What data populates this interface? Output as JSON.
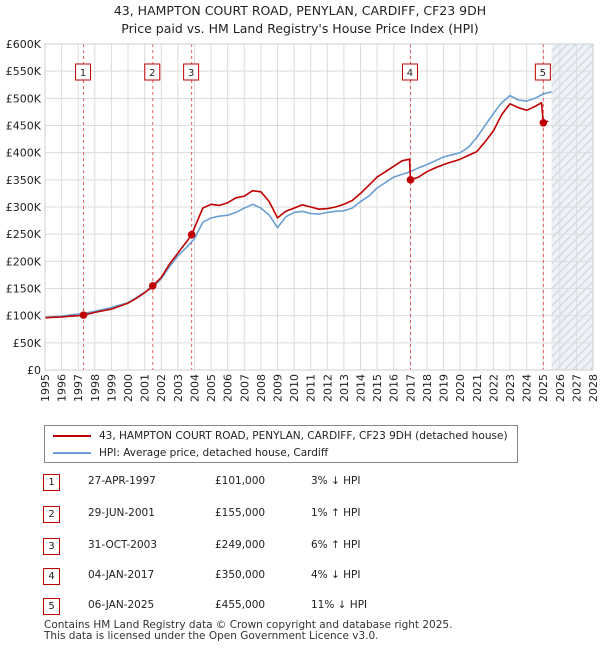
{
  "title_line1": "43, HAMPTON COURT ROAD, PENYLAN, CARDIFF, CF23 9DH",
  "title_line2": "Price paid vs. HM Land Registry's House Price Index (HPI)",
  "colors": {
    "price": "#c00000",
    "hpi": "#6a9fd4",
    "future_hatch": "#c8d2e0",
    "grid": "#dcdcdc",
    "vline": "#e06060"
  },
  "chart_data": {
    "type": "line",
    "title": "43, HAMPTON COURT ROAD, PENYLAN, CARDIFF, CF23 9DH — Price paid vs. HM Land Registry's House Price Index (HPI)",
    "xlim": [
      1995,
      2028
    ],
    "ylim": [
      0,
      600000
    ],
    "x_ticks": [
      "1995",
      "1996",
      "1997",
      "1998",
      "1999",
      "2000",
      "2001",
      "2002",
      "2003",
      "2004",
      "2005",
      "2006",
      "2007",
      "2008",
      "2009",
      "2010",
      "2011",
      "2012",
      "2013",
      "2014",
      "2015",
      "2016",
      "2017",
      "2018",
      "2019",
      "2020",
      "2021",
      "2022",
      "2023",
      "2024",
      "2025",
      "2026",
      "2027",
      "2028"
    ],
    "y_ticks": [
      {
        "value": 0,
        "label": "£0"
      },
      {
        "value": 50000,
        "label": "£50K"
      },
      {
        "value": 100000,
        "label": "£100K"
      },
      {
        "value": 150000,
        "label": "£150K"
      },
      {
        "value": 200000,
        "label": "£200K"
      },
      {
        "value": 250000,
        "label": "£250K"
      },
      {
        "value": 300000,
        "label": "£300K"
      },
      {
        "value": 350000,
        "label": "£350K"
      },
      {
        "value": 400000,
        "label": "£400K"
      },
      {
        "value": 450000,
        "label": "£450K"
      },
      {
        "value": 500000,
        "label": "£500K"
      },
      {
        "value": 550000,
        "label": "£550K"
      },
      {
        "value": 600000,
        "label": "£600K"
      }
    ],
    "future_from": 2025.5,
    "series": [
      {
        "name": "43, HAMPTON COURT ROAD, PENYLAN, CARDIFF, CF23 9DH (detached house)",
        "color": "#c00000",
        "x": [
          1995.0,
          1995.5,
          1996.0,
          1996.5,
          1997.0,
          1997.32,
          1998.0,
          1999.0,
          2000.0,
          2000.5,
          2001.0,
          2001.49,
          2002.0,
          2002.5,
          2003.0,
          2003.5,
          2003.83,
          2004.5,
          2005.0,
          2005.5,
          2006.0,
          2006.5,
          2007.0,
          2007.5,
          2008.0,
          2008.5,
          2009.0,
          2009.5,
          2010.0,
          2010.5,
          2011.0,
          2011.5,
          2012.0,
          2012.5,
          2013.0,
          2013.5,
          2014.0,
          2014.5,
          2015.0,
          2015.5,
          2016.0,
          2016.5,
          2016.95,
          2017.01,
          2017.5,
          2018.0,
          2018.5,
          2019.0,
          2019.5,
          2020.0,
          2020.5,
          2021.0,
          2021.5,
          2022.0,
          2022.5,
          2023.0,
          2023.5,
          2024.0,
          2024.5,
          2024.9,
          2025.01,
          2025.3
        ],
        "y": [
          96000,
          97000,
          97500,
          99000,
          100000,
          101000,
          106000,
          112000,
          123000,
          132000,
          142000,
          155000,
          170000,
          195000,
          215000,
          235000,
          249000,
          298000,
          305000,
          303000,
          308000,
          317000,
          320000,
          330000,
          328000,
          310000,
          280000,
          292000,
          298000,
          304000,
          300000,
          296000,
          297000,
          300000,
          305000,
          312000,
          325000,
          340000,
          355000,
          365000,
          375000,
          385000,
          388000,
          350000,
          355000,
          365000,
          372000,
          378000,
          383000,
          388000,
          395000,
          402000,
          420000,
          440000,
          470000,
          490000,
          483000,
          478000,
          485000,
          492000,
          455000,
          458000
        ]
      },
      {
        "name": "HPI: Average price, detached house, Cardiff",
        "color": "#6a9fd4",
        "x": [
          1995.0,
          1995.5,
          1996.0,
          1996.5,
          1997.0,
          1997.5,
          1998.0,
          1999.0,
          2000.0,
          2000.5,
          2001.0,
          2001.5,
          2002.0,
          2002.5,
          2003.0,
          2003.5,
          2004.0,
          2004.5,
          2005.0,
          2005.5,
          2006.0,
          2006.5,
          2007.0,
          2007.5,
          2008.0,
          2008.5,
          2009.0,
          2009.5,
          2010.0,
          2010.5,
          2011.0,
          2011.5,
          2012.0,
          2012.5,
          2013.0,
          2013.5,
          2014.0,
          2014.5,
          2015.0,
          2015.5,
          2016.0,
          2016.5,
          2017.0,
          2017.5,
          2018.0,
          2018.5,
          2019.0,
          2019.5,
          2020.0,
          2020.5,
          2021.0,
          2021.5,
          2022.0,
          2022.5,
          2023.0,
          2023.5,
          2024.0,
          2024.5,
          2025.0,
          2025.5
        ],
        "y": [
          97000,
          98000,
          99000,
          101000,
          103000,
          105000,
          108000,
          115000,
          124000,
          133000,
          143000,
          152000,
          168000,
          190000,
          210000,
          225000,
          242000,
          272000,
          280000,
          283000,
          285000,
          290000,
          298000,
          305000,
          298000,
          285000,
          262000,
          282000,
          290000,
          292000,
          288000,
          287000,
          290000,
          292000,
          293000,
          298000,
          310000,
          320000,
          335000,
          345000,
          355000,
          360000,
          365000,
          372000,
          378000,
          385000,
          392000,
          396000,
          400000,
          410000,
          428000,
          450000,
          472000,
          492000,
          505000,
          497000,
          495000,
          500000,
          508000,
          512000
        ]
      }
    ],
    "sales": [
      {
        "label": "1",
        "x": 1997.32,
        "y": 101000
      },
      {
        "label": "2",
        "x": 2001.49,
        "y": 155000
      },
      {
        "label": "3",
        "x": 2003.83,
        "y": 249000
      },
      {
        "label": "4",
        "x": 2017.01,
        "y": 350000
      },
      {
        "label": "5",
        "x": 2025.01,
        "y": 455000
      }
    ]
  },
  "legend": {
    "price_label": "43, HAMPTON COURT ROAD, PENYLAN, CARDIFF, CF23 9DH (detached house)",
    "hpi_label": "HPI: Average price, detached house, Cardiff"
  },
  "transactions": [
    {
      "num": "1",
      "date": "27-APR-1997",
      "price": "£101,000",
      "hpi": "3% ↓ HPI"
    },
    {
      "num": "2",
      "date": "29-JUN-2001",
      "price": "£155,000",
      "hpi": "1% ↑ HPI"
    },
    {
      "num": "3",
      "date": "31-OCT-2003",
      "price": "£249,000",
      "hpi": "6% ↑ HPI"
    },
    {
      "num": "4",
      "date": "04-JAN-2017",
      "price": "£350,000",
      "hpi": "4% ↓ HPI"
    },
    {
      "num": "5",
      "date": "06-JAN-2025",
      "price": "£455,000",
      "hpi": "11% ↓ HPI"
    }
  ],
  "footer_line1": "Contains HM Land Registry data © Crown copyright and database right 2025.",
  "footer_line2": "This data is licensed under the Open Government Licence v3.0."
}
